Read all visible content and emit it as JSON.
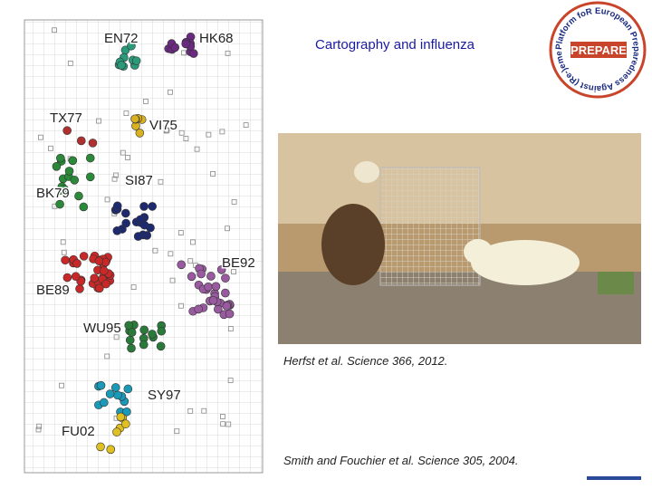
{
  "title": "Cartography and influenza",
  "map": {
    "clusters": [
      "EN72",
      "HK68",
      "TX77",
      "VI75",
      "SI87",
      "BK79",
      "BE92",
      "BE89",
      "WU95",
      "SY97",
      "FU02"
    ]
  },
  "photo_caption": "Herfst et al. Science 366, 2012.",
  "citation": "Smith and Fouchier et al. Science 305, 2004.",
  "logo": {
    "name": "PREPARE",
    "ring_text": "Platform foR European Preparedness Against (Re-)emerging Epidemics"
  }
}
